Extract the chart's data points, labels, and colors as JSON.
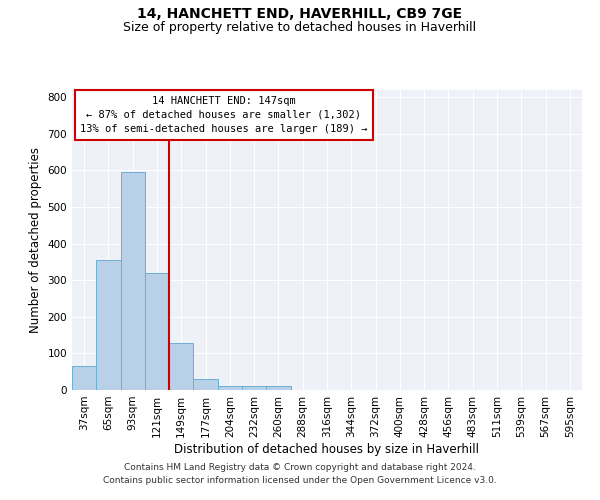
{
  "title": "14, HANCHETT END, HAVERHILL, CB9 7GE",
  "subtitle": "Size of property relative to detached houses in Haverhill",
  "xlabel": "Distribution of detached houses by size in Haverhill",
  "ylabel": "Number of detached properties",
  "categories": [
    "37sqm",
    "65sqm",
    "93sqm",
    "121sqm",
    "149sqm",
    "177sqm",
    "204sqm",
    "232sqm",
    "260sqm",
    "288sqm",
    "316sqm",
    "344sqm",
    "372sqm",
    "400sqm",
    "428sqm",
    "456sqm",
    "483sqm",
    "511sqm",
    "539sqm",
    "567sqm",
    "595sqm"
  ],
  "values": [
    65,
    355,
    595,
    320,
    128,
    30,
    10,
    10,
    10,
    0,
    0,
    0,
    0,
    0,
    0,
    0,
    0,
    0,
    0,
    0,
    0
  ],
  "bar_color": "#b8d0e8",
  "bar_edge_color": "#6baed6",
  "vline_index": 4,
  "vline_color": "#cc0000",
  "ann_line1": "14 HANCHETT END: 147sqm",
  "ann_line2": "← 87% of detached houses are smaller (1,302)",
  "ann_line3": "13% of semi-detached houses are larger (189) →",
  "annotation_box_color": "#cc0000",
  "ylim": [
    0,
    820
  ],
  "yticks": [
    0,
    100,
    200,
    300,
    400,
    500,
    600,
    700,
    800
  ],
  "bg_color": "#eef2f8",
  "footer_line1": "Contains HM Land Registry data © Crown copyright and database right 2024.",
  "footer_line2": "Contains public sector information licensed under the Open Government Licence v3.0.",
  "title_fontsize": 10,
  "subtitle_fontsize": 9,
  "axis_label_fontsize": 8.5,
  "tick_fontsize": 7.5,
  "annotation_fontsize": 7.5,
  "footer_fontsize": 6.5
}
